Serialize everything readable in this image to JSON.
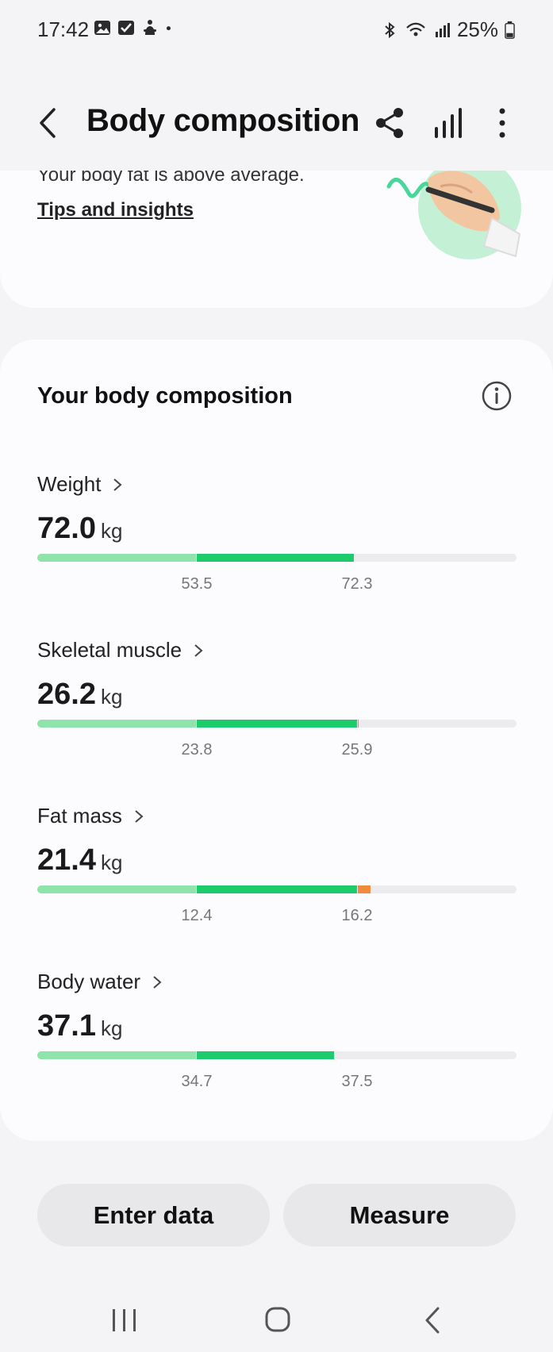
{
  "status_bar": {
    "time": "17:42",
    "battery": "25%",
    "icons_left": [
      "gallery-icon",
      "checkbox-icon",
      "accessibility-icon",
      "dot-icon"
    ],
    "icons_right": [
      "bluetooth-icon",
      "wifi-icon",
      "signal-icon",
      "battery-icon"
    ]
  },
  "header": {
    "title": "Body composition",
    "actions": [
      "share-icon",
      "chart-icon",
      "more-icon"
    ]
  },
  "tips": {
    "text": "Your body fat is above average.",
    "link": "Tips and insights"
  },
  "composition": {
    "title": "Your body composition",
    "metrics": [
      {
        "label": "Weight",
        "value": "72.0",
        "unit": "kg",
        "low": "53.5",
        "high": "72.3",
        "level": 0.66,
        "status": "normal"
      },
      {
        "label": "Skeletal muscle",
        "value": "26.2",
        "unit": "kg",
        "low": "23.8",
        "high": "25.9",
        "level": 0.67,
        "status": "high"
      },
      {
        "label": "Fat mass",
        "value": "21.4",
        "unit": "kg",
        "low": "12.4",
        "high": "16.2",
        "level": 0.696,
        "status": "high"
      },
      {
        "label": "Body water",
        "value": "37.1",
        "unit": "kg",
        "low": "34.7",
        "high": "37.5",
        "level": 0.62,
        "status": "normal"
      }
    ]
  },
  "buttons": {
    "enter_data": "Enter data",
    "measure": "Measure"
  },
  "colors": {
    "low": "#8fe4ab",
    "normal": "#1ecb6b",
    "high": "#f08a3c",
    "track": "#ececee",
    "card": "#fcfcfe",
    "background": "#f4f4f6"
  }
}
